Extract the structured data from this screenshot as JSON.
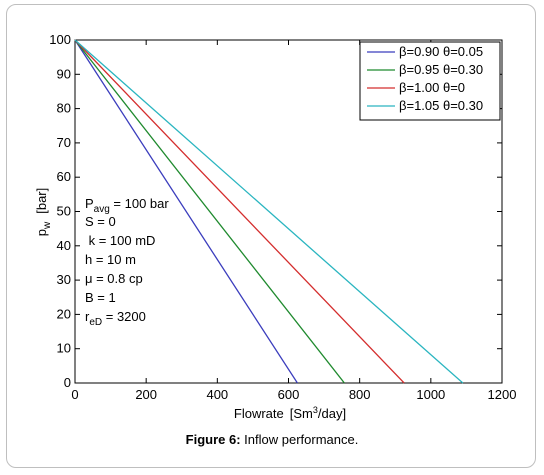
{
  "chart_data": {
    "type": "line",
    "xlabel_text": "Flowrate",
    "xlabel_unit": "[Sm",
    "xlabel_sup": "3",
    "xlabel_unit_end": "/day]",
    "ylabel_main": "p",
    "ylabel_sub": "w",
    "ylabel_unit": "[bar]",
    "xlim": [
      0,
      1200
    ],
    "ylim": [
      0,
      100
    ],
    "xticks": [
      "0",
      "200",
      "400",
      "600",
      "800",
      "1000",
      "1200"
    ],
    "yticks": [
      "0",
      "10",
      "20",
      "30",
      "40",
      "50",
      "60",
      "70",
      "80",
      "90",
      "100"
    ],
    "grid": false,
    "legend_position": "top-right",
    "series": [
      {
        "name": "β=0.90  θ=0.05",
        "color": "#3b3dbd",
        "x": [
          0,
          625
        ],
        "y": [
          100,
          0
        ]
      },
      {
        "name": "β=0.95  θ=0.30",
        "color": "#1f8a2e",
        "x": [
          0,
          757
        ],
        "y": [
          100,
          0
        ]
      },
      {
        "name": "β=1.00  θ=0",
        "color": "#d42d2d",
        "x": [
          0,
          925
        ],
        "y": [
          100,
          0
        ]
      },
      {
        "name": "β=1.05  θ=0.30",
        "color": "#2ab5c0",
        "x": [
          0,
          1090
        ],
        "y": [
          100,
          0
        ]
      }
    ],
    "annotations": {
      "pavg_main": "P",
      "pavg_sub": "avg",
      "pavg_rest": " = 100 bar",
      "s": "S = 0",
      "k": " k = 100 mD",
      "h": "h = 10 m",
      "mu": "μ = 0.8 cp",
      "b": "B = 1",
      "red_main": "r",
      "red_sub": "eD",
      "red_rest": " = 3200"
    }
  },
  "caption": {
    "label": "Figure 6:",
    "text": " Inflow performance."
  }
}
